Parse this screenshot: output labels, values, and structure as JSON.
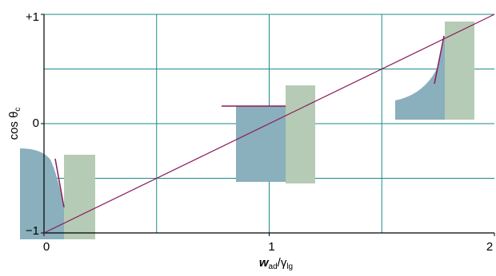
{
  "chart_data": {
    "type": "line",
    "xlabel": [
      {
        "text": "w"
      },
      {
        "text": "ad",
        "sub": true
      },
      {
        "text": "/γ"
      },
      {
        "text": "lg",
        "sub": true
      }
    ],
    "ylabel": [
      {
        "text": "cos θ"
      },
      {
        "text": "c",
        "sub": true
      }
    ],
    "series": [
      {
        "color": "#8b1a5a",
        "x": [
          0,
          2
        ],
        "values": [
          -1,
          1
        ]
      }
    ],
    "xlim": [
      0,
      2
    ],
    "ylim": [
      -1,
      1
    ],
    "xticks": [
      0,
      1,
      2
    ],
    "yticks": [
      {
        "value": -1,
        "label": "−1"
      },
      0,
      {
        "value": 1,
        "label": "+1"
      }
    ],
    "xgrid": [
      0.5,
      1,
      1.5
    ],
    "ygrid": [
      -0.5,
      0,
      0.5,
      1
    ],
    "grid_color": "#1a8a8a"
  }
}
